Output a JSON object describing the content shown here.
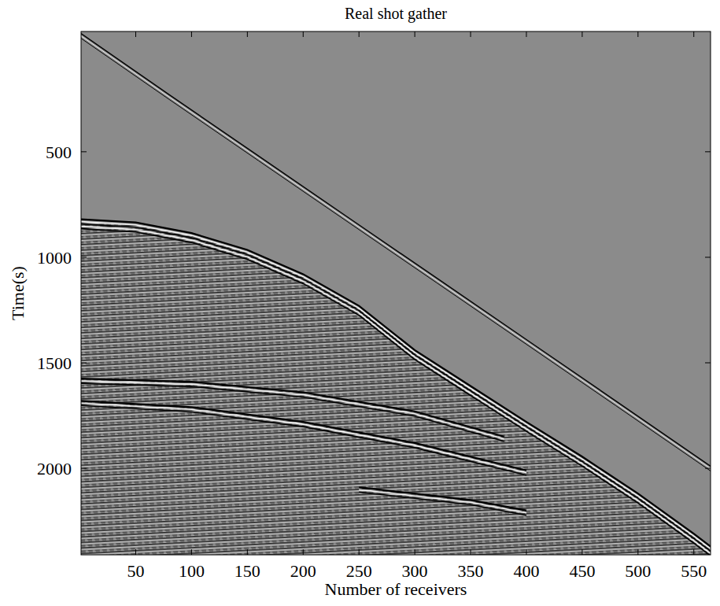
{
  "chart_data": {
    "type": "line",
    "title": "Real shot gather",
    "x_label": "Number of receivers",
    "y_label": "Time(s)",
    "xlim": [
      1,
      565
    ],
    "ylim": [
      2410,
      -70
    ],
    "xticks": [
      50,
      100,
      150,
      200,
      250,
      300,
      350,
      400,
      450,
      500,
      550
    ],
    "yticks": [
      500,
      1000,
      1500,
      2000
    ],
    "grid": false,
    "series": [
      {
        "color": "#000000",
        "x": [
          1,
          80,
          160,
          240,
          320,
          400,
          480,
          565
        ],
        "values": [
          -60,
          230,
          520,
          810,
          1100,
          1390,
          1680,
          1990
        ]
      },
      {
        "color": "#000000",
        "x": [
          1,
          50,
          100,
          150,
          200,
          250,
          300,
          350,
          400,
          450,
          500,
          550,
          565
        ],
        "values": [
          820,
          835,
          885,
          965,
          1080,
          1230,
          1440,
          1610,
          1780,
          1945,
          2120,
          2310,
          2370
        ]
      },
      {
        "color": "#000000",
        "x": [
          1,
          100,
          200,
          300,
          380
        ],
        "values": [
          1575,
          1590,
          1640,
          1730,
          1850
        ]
      },
      {
        "color": "#000000",
        "x": [
          1,
          100,
          200,
          300,
          400
        ],
        "values": [
          1680,
          1710,
          1780,
          1880,
          2010
        ]
      },
      {
        "color": "#000000",
        "x": [
          250,
          300,
          350,
          400
        ],
        "values": [
          2090,
          2120,
          2150,
          2200
        ]
      }
    ]
  }
}
